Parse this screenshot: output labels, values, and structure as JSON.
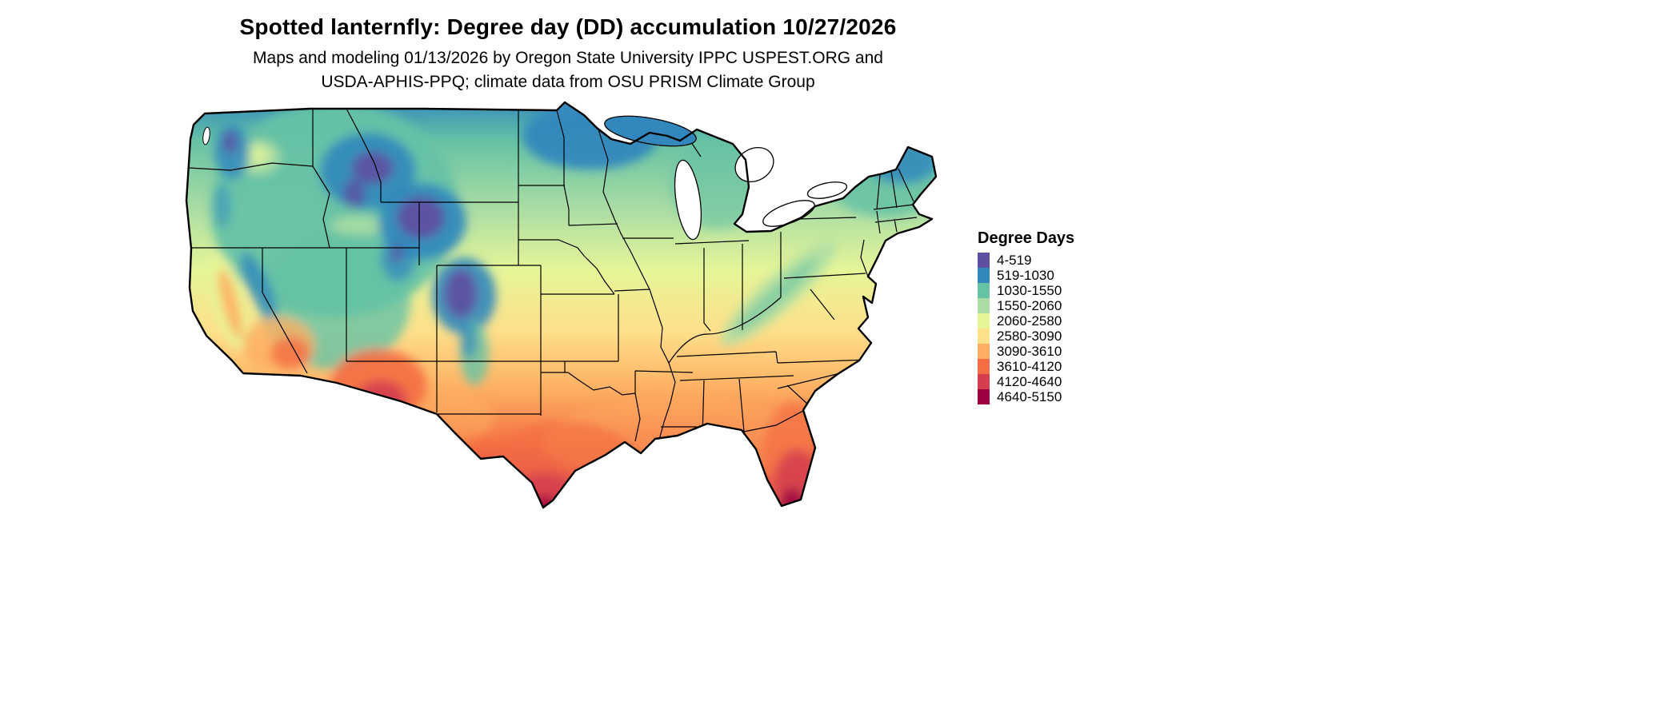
{
  "header": {
    "title": "Spotted lanternfly: Degree day (DD) accumulation 10/27/2026",
    "subtitle_line1": "Maps and modeling 01/13/2026 by Oregon State University IPPC USPEST.ORG and",
    "subtitle_line2": "USDA-APHIS-PPQ; climate data from OSU PRISM Climate Group"
  },
  "legend": {
    "title": "Degree Days",
    "entries": [
      {
        "label": "4-519",
        "color": "#5e4fa2"
      },
      {
        "label": "519-1030",
        "color": "#3288bd"
      },
      {
        "label": "1030-1550",
        "color": "#66c2a5"
      },
      {
        "label": "1550-2060",
        "color": "#abdda4"
      },
      {
        "label": "2060-2580",
        "color": "#e6f598"
      },
      {
        "label": "2580-3090",
        "color": "#fee08b"
      },
      {
        "label": "3090-3610",
        "color": "#fdae61"
      },
      {
        "label": "3610-4120",
        "color": "#f46d43"
      },
      {
        "label": "4120-4640",
        "color": "#d53e4f"
      },
      {
        "label": "4640-5150",
        "color": "#9e0142"
      }
    ]
  },
  "chart_data": {
    "type": "heatmap",
    "title": "Spotted lanternfly: Degree day (DD) accumulation 10/27/2026",
    "legend_title": "Degree Days",
    "unit": "degree days",
    "geography": "contiguous United States",
    "bins": [
      {
        "label": "4-519",
        "min": 4,
        "max": 519,
        "color": "#5e4fa2"
      },
      {
        "label": "519-1030",
        "min": 519,
        "max": 1030,
        "color": "#3288bd"
      },
      {
        "label": "1030-1550",
        "min": 1030,
        "max": 1550,
        "color": "#66c2a5"
      },
      {
        "label": "1550-2060",
        "min": 1550,
        "max": 2060,
        "color": "#abdda4"
      },
      {
        "label": "2060-2580",
        "min": 2060,
        "max": 2580,
        "color": "#e6f598"
      },
      {
        "label": "2580-3090",
        "min": 2580,
        "max": 3090,
        "color": "#fee08b"
      },
      {
        "label": "3090-3610",
        "min": 3090,
        "max": 3610,
        "color": "#fdae61"
      },
      {
        "label": "3610-4120",
        "min": 3610,
        "max": 4120,
        "color": "#f46d43"
      },
      {
        "label": "4120-4640",
        "min": 4120,
        "max": 4640,
        "color": "#d53e4f"
      },
      {
        "label": "4640-5150",
        "min": 4640,
        "max": 5150,
        "color": "#9e0142"
      }
    ],
    "gradient_orientation": "low values (cool) in the north and mountains, high values (hot) in the south"
  }
}
